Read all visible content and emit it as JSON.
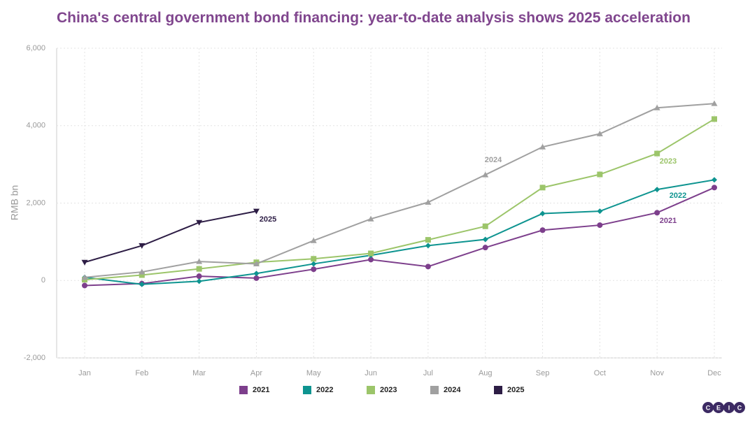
{
  "chart_data": {
    "type": "line",
    "title": "China's central government bond financing: year-to-date analysis shows 2025 acceleration",
    "y_label": "RMB bn",
    "categories": [
      "Jan",
      "Feb",
      "Mar",
      "Apr",
      "May",
      "Jun",
      "Jul",
      "Aug",
      "Sep",
      "Oct",
      "Nov",
      "Dec"
    ],
    "series": [
      {
        "name": "2021",
        "color": "#7d3f8c",
        "marker": "circle",
        "values": [
          -130,
          -80,
          110,
          60,
          290,
          540,
          360,
          850,
          1300,
          1430,
          1750,
          2400
        ]
      },
      {
        "name": "2022",
        "color": "#0e9490",
        "marker": "diamond",
        "values": [
          80,
          -100,
          -20,
          180,
          430,
          650,
          900,
          1060,
          1730,
          1790,
          2350,
          2600
        ]
      },
      {
        "name": "2023",
        "color": "#9cc56a",
        "marker": "square",
        "values": [
          20,
          140,
          300,
          470,
          560,
          700,
          1050,
          1400,
          2400,
          2740,
          3280,
          4170
        ]
      },
      {
        "name": "2024",
        "color": "#a0a0a0",
        "marker": "triangle-up",
        "values": [
          80,
          220,
          490,
          430,
          1030,
          1590,
          2020,
          2730,
          3450,
          3790,
          4460,
          4570
        ]
      },
      {
        "name": "2025",
        "color": "#2d1d45",
        "marker": "triangle-down",
        "values": [
          470,
          900,
          1500,
          1790,
          null,
          null,
          null,
          null,
          null,
          null,
          null,
          null
        ]
      }
    ],
    "ylim": [
      -2000,
      6000
    ],
    "yticks": [
      {
        "value": -2000,
        "label": "-2,000"
      },
      0,
      {
        "value": 2000,
        "label": "2,000"
      },
      {
        "value": 4000,
        "label": "4,000"
      },
      {
        "value": 6000,
        "label": "6,000"
      }
    ],
    "grid": true,
    "legend": "bottom",
    "logo": [
      "C",
      "E",
      "I",
      "C"
    ]
  }
}
